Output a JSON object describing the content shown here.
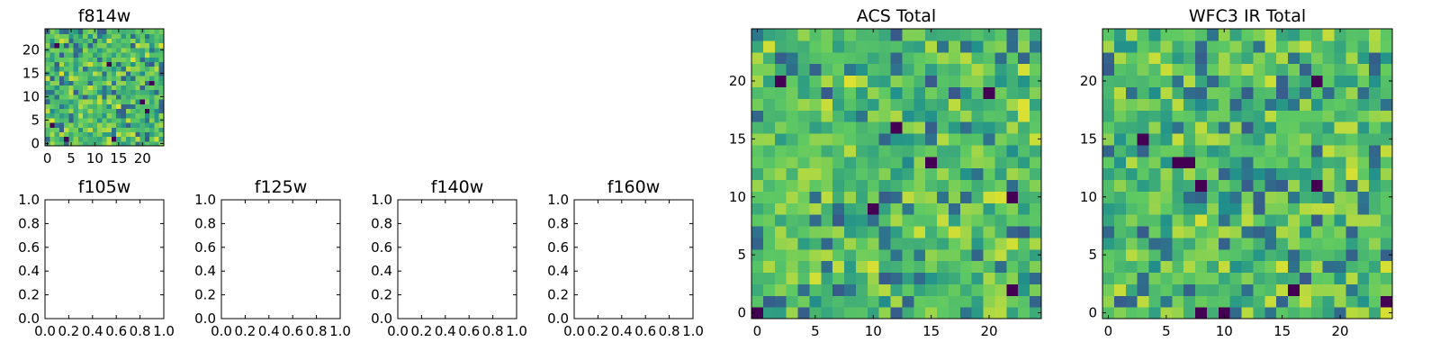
{
  "colors": {
    "viridis": [
      "#440154",
      "#3b528b",
      "#21918c",
      "#5ec962",
      "#fde725"
    ],
    "frame": "#000000"
  },
  "chart_data": [
    {
      "id": "f814w",
      "type": "heatmap",
      "title": "f814w",
      "rows": 25,
      "cols": 25,
      "xlim": [
        0,
        25
      ],
      "ylim": [
        0,
        25
      ],
      "xticks": [
        "0",
        "5",
        "10",
        "15",
        "20"
      ],
      "yticks": [
        "0",
        "5",
        "10",
        "15",
        "20"
      ],
      "seed": 3,
      "dark_cells": [
        [
          2,
          21
        ],
        [
          13,
          17
        ],
        [
          22,
          13
        ],
        [
          1,
          4
        ],
        [
          20,
          9
        ],
        [
          4,
          1
        ],
        [
          14,
          1
        ],
        [
          21,
          7
        ]
      ]
    },
    {
      "id": "f105w",
      "type": "heatmap",
      "title": "f105w",
      "empty": true,
      "xlim": [
        0,
        1
      ],
      "ylim": [
        0,
        1
      ],
      "xticks": [
        "0.0",
        "0.2",
        "0.4",
        "0.6",
        "0.8",
        "1.0"
      ],
      "yticks": [
        "0.0",
        "0.2",
        "0.4",
        "0.6",
        "0.8",
        "1.0"
      ]
    },
    {
      "id": "f125w",
      "type": "heatmap",
      "title": "f125w",
      "empty": true,
      "xlim": [
        0,
        1
      ],
      "ylim": [
        0,
        1
      ],
      "xticks": [
        "0.0",
        "0.2",
        "0.4",
        "0.6",
        "0.8",
        "1.0"
      ],
      "yticks": [
        "0.0",
        "0.2",
        "0.4",
        "0.6",
        "0.8",
        "1.0"
      ]
    },
    {
      "id": "f140w",
      "type": "heatmap",
      "title": "f140w",
      "empty": true,
      "xlim": [
        0,
        1
      ],
      "ylim": [
        0,
        1
      ],
      "xticks": [
        "0.0",
        "0.2",
        "0.4",
        "0.6",
        "0.8",
        "1.0"
      ],
      "yticks": [
        "0.0",
        "0.2",
        "0.4",
        "0.6",
        "0.8",
        "1.0"
      ]
    },
    {
      "id": "f160w",
      "type": "heatmap",
      "title": "f160w",
      "empty": true,
      "xlim": [
        0,
        1
      ],
      "ylim": [
        0,
        1
      ],
      "xticks": [
        "0.0",
        "0.2",
        "0.4",
        "0.6",
        "0.8",
        "1.0"
      ],
      "yticks": [
        "0.0",
        "0.2",
        "0.4",
        "0.6",
        "0.8",
        "1.0"
      ]
    },
    {
      "id": "acs-total",
      "type": "heatmap",
      "title": "ACS Total",
      "rows": 25,
      "cols": 25,
      "xlim": [
        0,
        25
      ],
      "ylim": [
        0,
        25
      ],
      "xticks": [
        "0",
        "5",
        "10",
        "15",
        "20"
      ],
      "yticks": [
        "0",
        "5",
        "10",
        "15",
        "20"
      ],
      "seed": 11,
      "dark_cells": [
        [
          2,
          20
        ],
        [
          20,
          19
        ],
        [
          12,
          16
        ],
        [
          15,
          13
        ],
        [
          22,
          10
        ],
        [
          10,
          9
        ],
        [
          0,
          0
        ],
        [
          22,
          2
        ]
      ]
    },
    {
      "id": "wfc3-ir-total",
      "type": "heatmap",
      "title": "WFC3 IR Total",
      "rows": 25,
      "cols": 25,
      "xlim": [
        0,
        25
      ],
      "ylim": [
        0,
        25
      ],
      "xticks": [
        "0",
        "5",
        "10",
        "15",
        "20"
      ],
      "yticks": [
        "0",
        "5",
        "10",
        "15",
        "20"
      ],
      "seed": 29,
      "dark_cells": [
        [
          18,
          20
        ],
        [
          3,
          15
        ],
        [
          6,
          13
        ],
        [
          7,
          13
        ],
        [
          8,
          11
        ],
        [
          18,
          11
        ],
        [
          8,
          0
        ],
        [
          24,
          1
        ],
        [
          16,
          2
        ],
        [
          10,
          0
        ]
      ]
    }
  ]
}
